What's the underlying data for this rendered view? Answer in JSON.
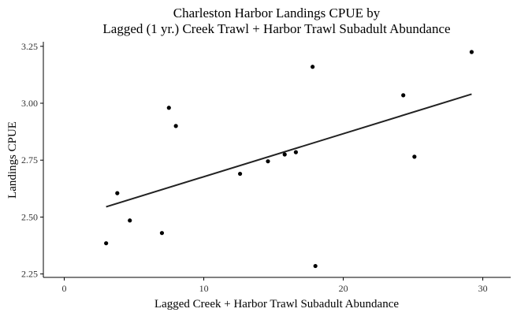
{
  "chart_data": {
    "type": "scatter",
    "title_lines": [
      "Charleston Harbor Landings CPUE by",
      "Lagged (1 yr.) Creek Trawl + Harbor Trawl Subadult Abundance"
    ],
    "xlabel": "Lagged Creek + Harbor Trawl Subadult Abundance",
    "ylabel": "Landings CPUE",
    "xlim": [
      -1.5,
      32
    ],
    "ylim": [
      2.235,
      3.27
    ],
    "xticks": [
      0,
      10,
      20,
      30
    ],
    "yticks": [
      2.25,
      2.5,
      2.75,
      3.0,
      3.25
    ],
    "ytick_labels": [
      "2.25",
      "2.50",
      "2.75",
      "3.00",
      "3.25"
    ],
    "grid": false,
    "points": [
      {
        "x": 3.0,
        "y": 2.385
      },
      {
        "x": 3.8,
        "y": 2.605
      },
      {
        "x": 4.7,
        "y": 2.485
      },
      {
        "x": 7.0,
        "y": 2.43
      },
      {
        "x": 7.5,
        "y": 2.98
      },
      {
        "x": 8.0,
        "y": 2.9
      },
      {
        "x": 12.6,
        "y": 2.69
      },
      {
        "x": 14.6,
        "y": 2.745
      },
      {
        "x": 15.8,
        "y": 2.775
      },
      {
        "x": 16.6,
        "y": 2.785
      },
      {
        "x": 17.8,
        "y": 3.16
      },
      {
        "x": 18.0,
        "y": 2.285
      },
      {
        "x": 24.3,
        "y": 3.035
      },
      {
        "x": 25.1,
        "y": 2.765
      },
      {
        "x": 29.2,
        "y": 3.225
      }
    ],
    "trend_line": {
      "x": [
        3.0,
        29.2
      ],
      "y": [
        2.545,
        3.04
      ]
    },
    "colors": {
      "points": "#000000",
      "trend_line": "#222222",
      "axis": "#000000"
    }
  }
}
